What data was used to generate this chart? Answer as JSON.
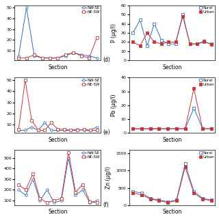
{
  "panels": [
    {
      "type": "profile",
      "label": "",
      "ylabel": "",
      "legend_labels": [
        "NW-SE",
        "NE-SW"
      ],
      "nwse": [
        5,
        50,
        5,
        3,
        3,
        3,
        5,
        8,
        6,
        5,
        3
      ],
      "nesw": [
        3,
        3,
        6,
        3,
        3,
        3,
        6,
        8,
        5,
        3,
        22
      ],
      "ylim_auto": true
    },
    {
      "type": "rural_urban",
      "label": "(d)",
      "ylabel": "P (μg/l)",
      "legend_labels": [
        "Rural",
        "Urban"
      ],
      "rural": [
        30,
        44,
        16,
        40,
        22,
        18,
        18,
        50,
        18,
        18,
        20,
        18
      ],
      "urban": [
        20,
        16,
        30,
        20,
        18,
        20,
        20,
        48,
        18,
        18,
        21,
        17
      ],
      "ylim": [
        0,
        60
      ]
    },
    {
      "type": "profile",
      "label": "",
      "ylabel": "",
      "legend_labels": [
        "NW-SE",
        "NE-SW"
      ],
      "nwse": [
        5,
        5,
        8,
        5,
        12,
        5,
        5,
        5,
        5,
        6,
        5,
        5,
        8
      ],
      "nesw": [
        6,
        50,
        14,
        5,
        5,
        12,
        6,
        6,
        5,
        5,
        6,
        5,
        5
      ],
      "ylim_auto": true
    },
    {
      "type": "rural_urban",
      "label": "(e)",
      "ylabel": "Pb (μg/l)",
      "legend_labels": [
        "Rural",
        "Urban"
      ],
      "rural": [
        3,
        3,
        3,
        3,
        3,
        3,
        3,
        18,
        3,
        3
      ],
      "urban": [
        3,
        3,
        3,
        3,
        3,
        3,
        3,
        32,
        3,
        3
      ],
      "ylim": [
        0,
        40
      ]
    },
    {
      "type": "profile",
      "label": "",
      "ylabel": "",
      "legend_labels": [
        "NW-SE",
        "NE-SW"
      ],
      "nwse": [
        200,
        150,
        300,
        100,
        200,
        80,
        100,
        500,
        150,
        200,
        80,
        100
      ],
      "nesw": [
        250,
        200,
        350,
        120,
        80,
        100,
        120,
        550,
        180,
        250,
        90,
        80
      ],
      "ylim_auto": true
    },
    {
      "type": "rural_urban",
      "label": "(f)",
      "ylabel": "Zn (μg/l)",
      "legend_labels": [
        "Rural",
        "Urban"
      ],
      "rural": [
        400,
        350,
        200,
        150,
        100,
        150,
        1200,
        400,
        200,
        150
      ],
      "urban": [
        350,
        300,
        180,
        130,
        80,
        130,
        1100,
        350,
        180,
        130
      ],
      "ylim": [
        0,
        1600
      ]
    }
  ],
  "blue_color": "#3366CC",
  "red_color": "#CC3333",
  "bg_color": "#ffffff",
  "fontsize": 5.5,
  "marker_size": 2.5,
  "linewidth": 0.7
}
